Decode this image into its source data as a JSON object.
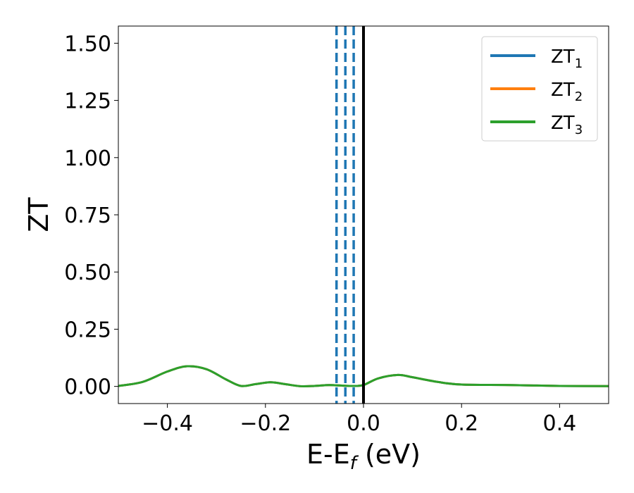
{
  "chart_data": {
    "type": "line",
    "title": "",
    "ylabel": "ZT",
    "xlabel": {
      "text": "E-E",
      "subscript": "f",
      "unit": " (eV)"
    },
    "xlim": [
      -0.5,
      0.5
    ],
    "ylim": [
      -0.075,
      1.575
    ],
    "grid": false,
    "legend_position": "top-right",
    "x_ticks": [
      -0.4,
      -0.2,
      0.0,
      0.2,
      0.4
    ],
    "x_tick_labels": [
      "−0.4",
      "−0.2",
      "0.0",
      "0.2",
      "0.4"
    ],
    "y_ticks": [
      0.0,
      0.25,
      0.5,
      0.75,
      1.0,
      1.25,
      1.5
    ],
    "y_tick_labels": [
      "0.00",
      "0.25",
      "0.50",
      "0.75",
      "1.00",
      "1.25",
      "1.50"
    ],
    "x": [
      -0.5,
      -0.45,
      -0.4,
      -0.36,
      -0.32,
      -0.28,
      -0.25,
      -0.22,
      -0.19,
      -0.16,
      -0.13,
      -0.1,
      -0.07,
      -0.04,
      -0.02,
      0.0,
      0.03,
      0.07,
      0.1,
      0.15,
      0.2,
      0.3,
      0.4,
      0.5
    ],
    "series": [
      {
        "name": "ZT",
        "name_sub": "1",
        "color": "#1f77b4",
        "values": [
          0.002,
          0.02,
          0.065,
          0.088,
          0.075,
          0.03,
          0.002,
          0.01,
          0.018,
          0.01,
          0.001,
          0.002,
          0.006,
          0.003,
          0.002,
          0.006,
          0.035,
          0.05,
          0.04,
          0.02,
          0.008,
          0.006,
          0.002,
          0.001
        ]
      },
      {
        "name": "ZT",
        "name_sub": "2",
        "color": "#ff7f0e",
        "values": [
          0.002,
          0.02,
          0.065,
          0.088,
          0.075,
          0.03,
          0.002,
          0.01,
          0.018,
          0.01,
          0.001,
          0.002,
          0.006,
          0.003,
          0.002,
          0.006,
          0.035,
          0.05,
          0.04,
          0.02,
          0.008,
          0.006,
          0.002,
          0.001
        ]
      },
      {
        "name": "ZT",
        "name_sub": "3",
        "color": "#2ca02c",
        "values": [
          0.002,
          0.02,
          0.065,
          0.088,
          0.075,
          0.03,
          0.002,
          0.01,
          0.018,
          0.01,
          0.001,
          0.002,
          0.006,
          0.003,
          0.002,
          0.006,
          0.035,
          0.05,
          0.04,
          0.02,
          0.008,
          0.006,
          0.002,
          0.001
        ]
      }
    ],
    "vertical_lines": [
      {
        "x": -0.055,
        "style": "dashed",
        "color": "#1f77b4"
      },
      {
        "x": -0.037,
        "style": "dashed",
        "color": "#1f77b4"
      },
      {
        "x": -0.02,
        "style": "dashed",
        "color": "#1f77b4"
      },
      {
        "x": 0.0,
        "style": "solid",
        "color": "#000000"
      }
    ]
  }
}
